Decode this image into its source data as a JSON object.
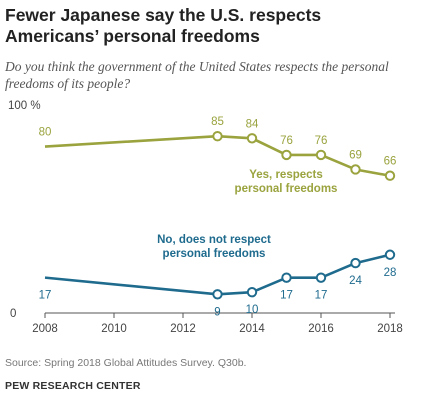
{
  "title": "Fewer Japanese say the U.S. respects Americans’ personal freedoms",
  "subtitle": "Do you think the government of the United States respects the personal freedoms of its people?",
  "source": "Source: Spring 2018 Global Attitudes Survey. Q30b.",
  "brand": "PEW RESEARCH CENTER",
  "chart_data": {
    "type": "line",
    "x": [
      2008,
      2013,
      2014,
      2015,
      2016,
      2017,
      2018
    ],
    "xticks": [
      "2008",
      "2010",
      "2012",
      "2014",
      "2016",
      "2018"
    ],
    "xtick_values": [
      2008,
      2010,
      2012,
      2014,
      2016,
      2018
    ],
    "ylim": [
      0,
      100
    ],
    "ytick_labels": {
      "top": "100 %",
      "bottom": "0"
    },
    "series": [
      {
        "name": "Yes, respects personal freedoms",
        "label_lines": [
          "Yes, respects",
          "personal freedoms"
        ],
        "color": "#9aa33e",
        "values": [
          80,
          85,
          84,
          76,
          76,
          69,
          66
        ]
      },
      {
        "name": "No, does not respect personal freedoms",
        "label_lines": [
          "No, does not respect",
          "personal freedoms"
        ],
        "color": "#1f6b8e",
        "values": [
          17,
          9,
          10,
          17,
          17,
          24,
          28
        ]
      }
    ]
  }
}
